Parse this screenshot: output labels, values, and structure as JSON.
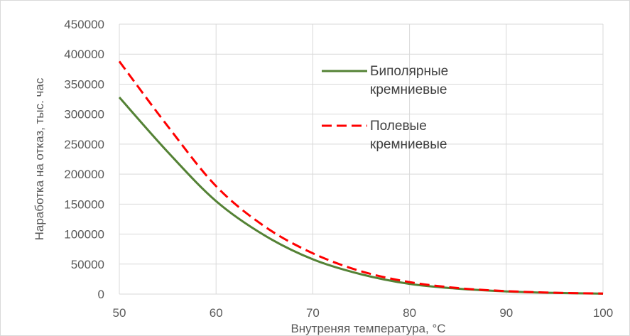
{
  "chart_data": {
    "type": "line",
    "title": "",
    "xlabel": "Внутреняя температура, °С",
    "ylabel": "Наработка на отказ, тыс. час",
    "xlim": [
      50,
      100
    ],
    "ylim": [
      0,
      450000
    ],
    "x_ticks": [
      "50",
      "60",
      "70",
      "80",
      "90",
      "100"
    ],
    "y_ticks": [
      "0",
      "50000",
      "100000",
      "150000",
      "200000",
      "250000",
      "300000",
      "350000",
      "400000",
      "450000"
    ],
    "grid": true,
    "legend_position": "upper-right inside plot",
    "x": [
      50,
      55,
      60,
      65,
      70,
      75,
      80,
      85,
      90,
      95,
      100
    ],
    "series": [
      {
        "name_lines": [
          "Биполярные",
          "кремниевые"
        ],
        "color": "#548235",
        "style": "solid",
        "values": [
          328000,
          237000,
          155000,
          98000,
          58000,
          33000,
          17000,
          9000,
          4500,
          2000,
          800
        ]
      },
      {
        "name_lines": [
          "Полевые",
          "кремниевые"
        ],
        "color": "#ff0000",
        "style": "dashed",
        "values": [
          388000,
          280000,
          180000,
          113000,
          68000,
          38000,
          20000,
          10000,
          5000,
          2200,
          900
        ]
      }
    ]
  }
}
